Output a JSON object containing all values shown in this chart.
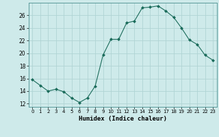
{
  "x": [
    0,
    1,
    2,
    3,
    4,
    5,
    6,
    7,
    8,
    9,
    10,
    11,
    12,
    13,
    14,
    15,
    16,
    17,
    18,
    19,
    20,
    21,
    22,
    23
  ],
  "y": [
    15.8,
    14.9,
    14.0,
    14.3,
    13.9,
    12.9,
    12.2,
    12.9,
    14.8,
    19.7,
    22.2,
    22.2,
    24.8,
    25.1,
    27.2,
    27.3,
    27.5,
    26.7,
    25.7,
    24.0,
    22.1,
    21.4,
    19.7,
    18.9
  ],
  "line_color": "#1a6b5a",
  "marker": "D",
  "marker_size": 2.0,
  "bg_color": "#ceeaea",
  "grid_color": "#b0d4d4",
  "xlabel": "Humidex (Indice chaleur)",
  "xlim": [
    -0.5,
    23.5
  ],
  "ylim": [
    11.5,
    28.0
  ],
  "yticks": [
    12,
    14,
    16,
    18,
    20,
    22,
    24,
    26
  ],
  "xtick_labels": [
    "0",
    "1",
    "2",
    "3",
    "4",
    "5",
    "6",
    "7",
    "8",
    "9",
    "10",
    "11",
    "12",
    "13",
    "14",
    "15",
    "16",
    "17",
    "18",
    "19",
    "20",
    "21",
    "22",
    "23"
  ]
}
